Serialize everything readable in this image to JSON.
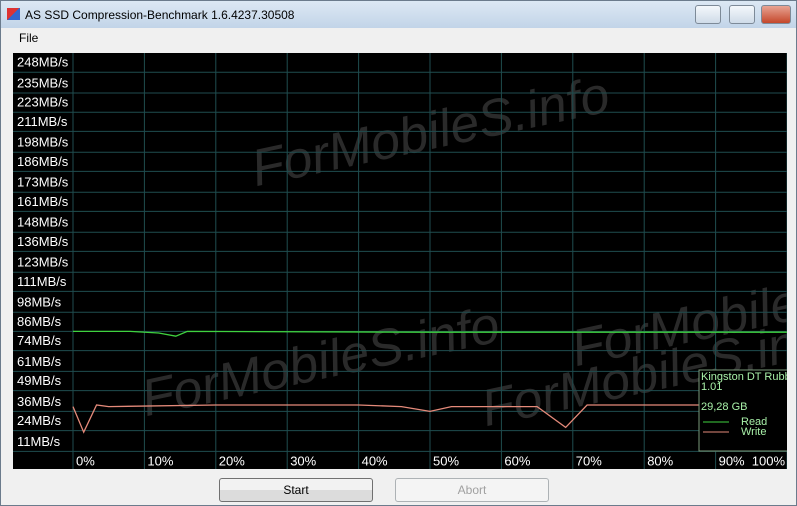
{
  "window": {
    "title": "AS SSD Compression-Benchmark 1.6.4237.30508"
  },
  "menu": [
    "File"
  ],
  "buttons": [
    "Start",
    "Abort"
  ],
  "watermark": "ForMobileS.info",
  "chart_data": {
    "type": "line",
    "ylim": [
      0,
      260
    ],
    "yticks": [
      {
        "value": 11,
        "label": "11MB/s"
      },
      {
        "value": 24,
        "label": "24MB/s"
      },
      {
        "value": 36,
        "label": "36MB/s"
      },
      {
        "value": 49,
        "label": "49MB/s"
      },
      {
        "value": 61,
        "label": "61MB/s"
      },
      {
        "value": 74,
        "label": "74MB/s"
      },
      {
        "value": 86,
        "label": "86MB/s"
      },
      {
        "value": 98,
        "label": "98MB/s"
      },
      {
        "value": 111,
        "label": "111MB/s"
      },
      {
        "value": 123,
        "label": "123MB/s"
      },
      {
        "value": 136,
        "label": "136MB/s"
      },
      {
        "value": 148,
        "label": "148MB/s"
      },
      {
        "value": 161,
        "label": "161MB/s"
      },
      {
        "value": 173,
        "label": "173MB/s"
      },
      {
        "value": 186,
        "label": "186MB/s"
      },
      {
        "value": 198,
        "label": "198MB/s"
      },
      {
        "value": 211,
        "label": "211MB/s"
      },
      {
        "value": 223,
        "label": "223MB/s"
      },
      {
        "value": 235,
        "label": "235MB/s"
      },
      {
        "value": 248,
        "label": "248MB/s"
      }
    ],
    "xlim": [
      0,
      100
    ],
    "xticks": [
      {
        "value": 0,
        "label": "0%"
      },
      {
        "value": 10,
        "label": "10%"
      },
      {
        "value": 20,
        "label": "20%"
      },
      {
        "value": 30,
        "label": "30%"
      },
      {
        "value": 40,
        "label": "40%"
      },
      {
        "value": 50,
        "label": "50%"
      },
      {
        "value": 60,
        "label": "60%"
      },
      {
        "value": 70,
        "label": "70%"
      },
      {
        "value": 80,
        "label": "80%"
      },
      {
        "value": 90,
        "label": "90%"
      },
      {
        "value": 100,
        "label": "100%"
      }
    ],
    "grid": true,
    "legend": "lower right",
    "device_info": [
      "Kingston DT Rubbe",
      "1.01",
      "29,28 GB"
    ],
    "series": [
      {
        "name": "Read",
        "color": "#3fd23f",
        "x": [
          0,
          8,
          12,
          14.4,
          16,
          50,
          100
        ],
        "values": [
          86,
          86,
          85,
          83,
          86,
          85.5,
          85.5
        ]
      },
      {
        "name": "Write",
        "color": "#e58a7a",
        "x": [
          0,
          1.5,
          3.3,
          5,
          20,
          40,
          46,
          50,
          53,
          65,
          69,
          72,
          100
        ],
        "values": [
          39,
          23,
          40,
          39,
          40,
          40,
          39,
          36,
          39,
          39,
          26,
          40,
          40
        ]
      }
    ]
  }
}
